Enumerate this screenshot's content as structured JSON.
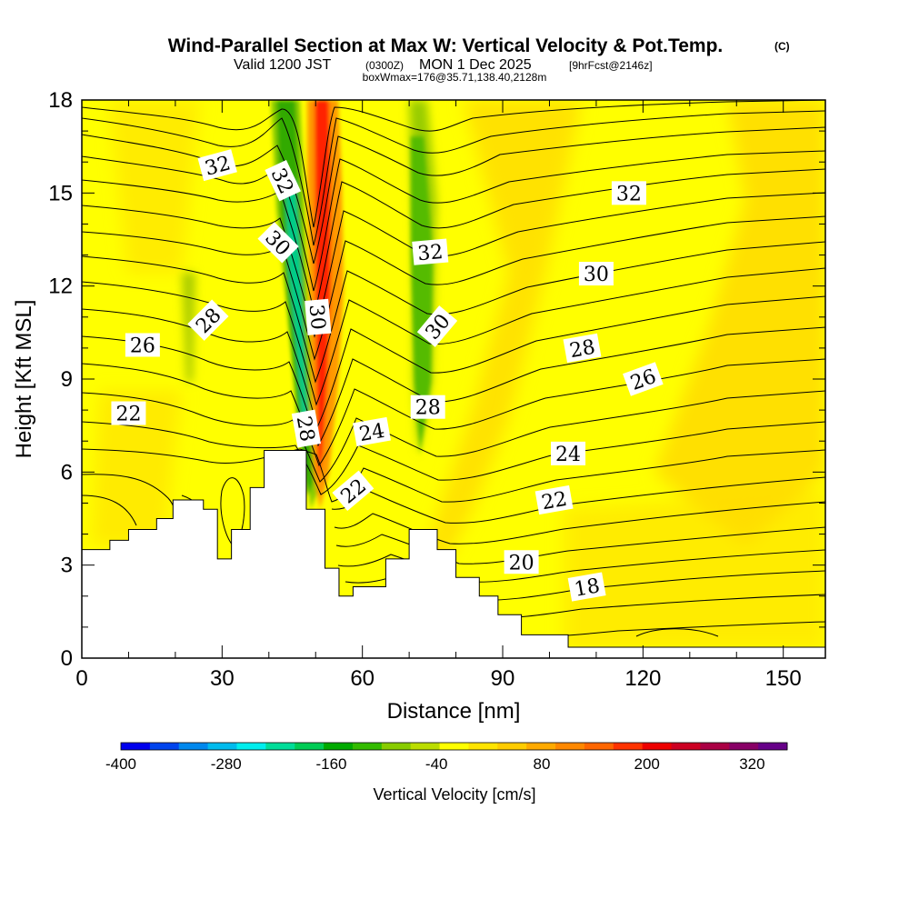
{
  "title": {
    "main": "Wind-Parallel Section at Max W: Vertical Velocity & Pot.Temp.",
    "mark": "(C)",
    "valid_prefix": "Valid 1200 JST",
    "valid_utc": "(0300Z)",
    "valid_date": "MON 1 Dec 2025",
    "forecast": "[9hrFcst@2146z]",
    "box": "boxWmax=176@35.71,138.40,2128m"
  },
  "colors": {
    "background_field": "#ffff00",
    "terrain": "#ffffff",
    "contour": "#000000"
  },
  "chart_data": {
    "type": "heatmap",
    "xlabel": "Distance [nm]",
    "ylabel": "Height [Kft MSL]",
    "xlim": [
      0,
      159
    ],
    "ylim": [
      0,
      18
    ],
    "xticks": [
      0,
      30,
      60,
      90,
      120,
      150
    ],
    "yticks": [
      0,
      3,
      6,
      9,
      12,
      15,
      18
    ],
    "colorbar": {
      "label": "Vertical Velocity [cm/s]",
      "ticks": [
        -400,
        -280,
        -160,
        -40,
        80,
        200,
        320
      ],
      "range": [
        -400,
        360
      ],
      "colors": [
        "#0000ee",
        "#0044ee",
        "#0088ee",
        "#00bbee",
        "#00eeee",
        "#00dd99",
        "#00cc55",
        "#00aa00",
        "#33bb00",
        "#88cc00",
        "#bbdd00",
        "#ffff00",
        "#ffe400",
        "#ffcc00",
        "#ffaa00",
        "#ff8800",
        "#ff6600",
        "#ff3300",
        "#ee0000",
        "#cc0022",
        "#aa0044",
        "#880066",
        "#660088"
      ]
    },
    "terrain_profile": [
      {
        "x": 0,
        "y": 3.5
      },
      {
        "x": 6,
        "y": 3.8
      },
      {
        "x": 10,
        "y": 4.15
      },
      {
        "x": 16,
        "y": 4.5
      },
      {
        "x": 19.5,
        "y": 5.1
      },
      {
        "x": 26,
        "y": 4.8
      },
      {
        "x": 29,
        "y": 3.2
      },
      {
        "x": 32,
        "y": 4.15
      },
      {
        "x": 36,
        "y": 5.5
      },
      {
        "x": 39,
        "y": 6.7
      },
      {
        "x": 48,
        "y": 4.8
      },
      {
        "x": 52,
        "y": 2.9
      },
      {
        "x": 55,
        "y": 2.0
      },
      {
        "x": 58,
        "y": 2.3
      },
      {
        "x": 65,
        "y": 3.2
      },
      {
        "x": 70,
        "y": 4.15
      },
      {
        "x": 76,
        "y": 3.5
      },
      {
        "x": 80,
        "y": 2.6
      },
      {
        "x": 85,
        "y": 2.0
      },
      {
        "x": 89,
        "y": 1.4
      },
      {
        "x": 94,
        "y": 0.75
      },
      {
        "x": 104,
        "y": 0.35
      },
      {
        "x": 159,
        "y": 0.35
      }
    ],
    "contour_labels": [
      {
        "text": "32",
        "x": 29,
        "y": 15.9,
        "angle": -15
      },
      {
        "text": "32",
        "x": 43,
        "y": 15.4,
        "angle": 65
      },
      {
        "text": "30",
        "x": 42,
        "y": 13.4,
        "angle": 45
      },
      {
        "text": "30",
        "x": 50.5,
        "y": 11.0,
        "angle": 85
      },
      {
        "text": "28",
        "x": 27,
        "y": 10.9,
        "angle": -45
      },
      {
        "text": "26",
        "x": 13,
        "y": 10.1,
        "angle": 0
      },
      {
        "text": "22",
        "x": 10,
        "y": 7.9,
        "angle": 0
      },
      {
        "text": "28",
        "x": 48,
        "y": 7.4,
        "angle": 80
      },
      {
        "text": "24",
        "x": 62,
        "y": 7.3,
        "angle": -10
      },
      {
        "text": "22",
        "x": 58,
        "y": 5.4,
        "angle": -40
      },
      {
        "text": "32",
        "x": 74.5,
        "y": 13.1,
        "angle": -5
      },
      {
        "text": "30",
        "x": 76,
        "y": 10.7,
        "angle": -50
      },
      {
        "text": "28",
        "x": 74,
        "y": 8.1,
        "angle": 0
      },
      {
        "text": "32",
        "x": 117,
        "y": 15.0,
        "angle": 0
      },
      {
        "text": "30",
        "x": 110,
        "y": 12.4,
        "angle": 0
      },
      {
        "text": "28",
        "x": 107,
        "y": 10.0,
        "angle": -10
      },
      {
        "text": "26",
        "x": 120,
        "y": 9.0,
        "angle": -20
      },
      {
        "text": "24",
        "x": 104,
        "y": 6.6,
        "angle": 0
      },
      {
        "text": "22",
        "x": 101,
        "y": 5.1,
        "angle": -10
      },
      {
        "text": "20",
        "x": 94,
        "y": 3.1,
        "angle": 0
      },
      {
        "text": "18",
        "x": 108,
        "y": 2.3,
        "angle": -10
      }
    ]
  }
}
